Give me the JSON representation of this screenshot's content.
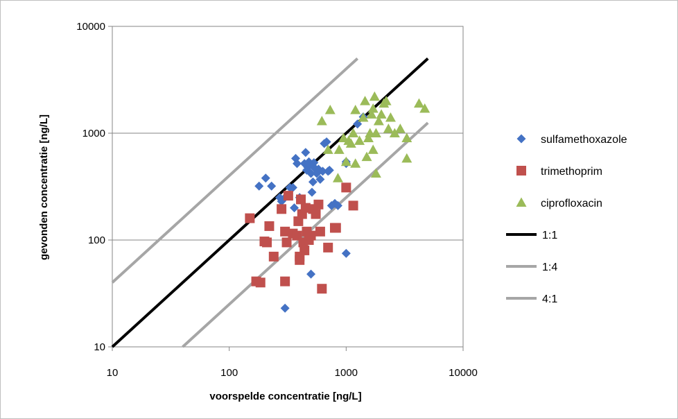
{
  "chart_data": {
    "type": "scatter",
    "xscale": "log",
    "yscale": "log",
    "xlim": [
      10,
      10000
    ],
    "ylim": [
      10,
      10000
    ],
    "grid": "horizontal",
    "legend_position": "right",
    "xlabel": "voorspelde concentratie [ng/L]",
    "ylabel": "gevonden concentratie [ng/L]",
    "x_ticks": [
      "10",
      "100",
      "1000",
      "10000"
    ],
    "y_ticks": [
      "10",
      "100",
      "1000",
      "10000"
    ],
    "series": [
      {
        "name": "sulfamethoxazole",
        "marker": "diamond",
        "color": "#4472c4",
        "points": [
          [
            180,
            320
          ],
          [
            205,
            380
          ],
          [
            230,
            320
          ],
          [
            270,
            250
          ],
          [
            280,
            230
          ],
          [
            300,
            250
          ],
          [
            330,
            310
          ],
          [
            350,
            310
          ],
          [
            360,
            200
          ],
          [
            370,
            580
          ],
          [
            380,
            520
          ],
          [
            400,
            250
          ],
          [
            440,
            520
          ],
          [
            450,
            660
          ],
          [
            460,
            450
          ],
          [
            470,
            480
          ],
          [
            480,
            540
          ],
          [
            490,
            500
          ],
          [
            500,
            420
          ],
          [
            510,
            280
          ],
          [
            520,
            350
          ],
          [
            530,
            530
          ],
          [
            540,
            470
          ],
          [
            560,
            420
          ],
          [
            580,
            460
          ],
          [
            600,
            370
          ],
          [
            630,
            440
          ],
          [
            650,
            800
          ],
          [
            680,
            830
          ],
          [
            700,
            440
          ],
          [
            720,
            450
          ],
          [
            750,
            210
          ],
          [
            800,
            220
          ],
          [
            850,
            210
          ],
          [
            1000,
            540
          ],
          [
            1000,
            520
          ],
          [
            1250,
            1220
          ],
          [
            1400,
            1420
          ],
          [
            500,
            48
          ],
          [
            1000,
            75
          ],
          [
            300,
            23
          ]
        ]
      },
      {
        "name": "trimethoprim",
        "marker": "square",
        "color": "#c0504d",
        "points": [
          [
            150,
            160
          ],
          [
            170,
            41
          ],
          [
            185,
            40
          ],
          [
            200,
            97
          ],
          [
            210,
            95
          ],
          [
            220,
            135
          ],
          [
            240,
            70
          ],
          [
            280,
            195
          ],
          [
            300,
            120
          ],
          [
            300,
            41
          ],
          [
            310,
            95
          ],
          [
            320,
            260
          ],
          [
            350,
            115
          ],
          [
            380,
            110
          ],
          [
            390,
            150
          ],
          [
            400,
            65
          ],
          [
            410,
            240
          ],
          [
            420,
            175
          ],
          [
            430,
            95
          ],
          [
            440,
            80
          ],
          [
            450,
            200
          ],
          [
            460,
            120
          ],
          [
            480,
            100
          ],
          [
            500,
            110
          ],
          [
            520,
            195
          ],
          [
            550,
            175
          ],
          [
            580,
            215
          ],
          [
            600,
            120
          ],
          [
            620,
            35
          ],
          [
            700,
            85
          ],
          [
            800,
            130
          ],
          [
            820,
            130
          ],
          [
            1000,
            310
          ],
          [
            1150,
            210
          ],
          [
            400,
            70
          ]
        ]
      },
      {
        "name": "ciprofloxacin",
        "marker": "triangle",
        "color": "#9bbb59",
        "points": [
          [
            620,
            1300
          ],
          [
            700,
            700
          ],
          [
            730,
            1650
          ],
          [
            850,
            380
          ],
          [
            870,
            700
          ],
          [
            950,
            900
          ],
          [
            1000,
            540
          ],
          [
            1050,
            850
          ],
          [
            1100,
            800
          ],
          [
            1150,
            1000
          ],
          [
            1200,
            520
          ],
          [
            1200,
            1650
          ],
          [
            1300,
            850
          ],
          [
            1400,
            1400
          ],
          [
            1450,
            2000
          ],
          [
            1500,
            600
          ],
          [
            1550,
            900
          ],
          [
            1600,
            1000
          ],
          [
            1700,
            700
          ],
          [
            1700,
            1700
          ],
          [
            1750,
            2200
          ],
          [
            1800,
            1000
          ],
          [
            1800,
            420
          ],
          [
            1900,
            1300
          ],
          [
            2000,
            1500
          ],
          [
            2100,
            1900
          ],
          [
            2200,
            2000
          ],
          [
            2300,
            1100
          ],
          [
            2400,
            1400
          ],
          [
            2600,
            1000
          ],
          [
            2900,
            1100
          ],
          [
            3300,
            580
          ],
          [
            3300,
            900
          ],
          [
            4200,
            1900
          ],
          [
            4700,
            1700
          ],
          [
            1650,
            1500
          ]
        ]
      },
      {
        "name": "1:1",
        "marker": "line",
        "color": "#000000",
        "points": [
          [
            10,
            10
          ],
          [
            5000,
            5000
          ]
        ]
      },
      {
        "name": "1:4",
        "marker": "line",
        "color": "#a6a6a6",
        "points": [
          [
            10,
            40
          ],
          [
            1250,
            5000
          ]
        ]
      },
      {
        "name": "4:1",
        "marker": "line",
        "color": "#a6a6a6",
        "points": [
          [
            40,
            10
          ],
          [
            5000,
            1250
          ]
        ]
      }
    ]
  }
}
